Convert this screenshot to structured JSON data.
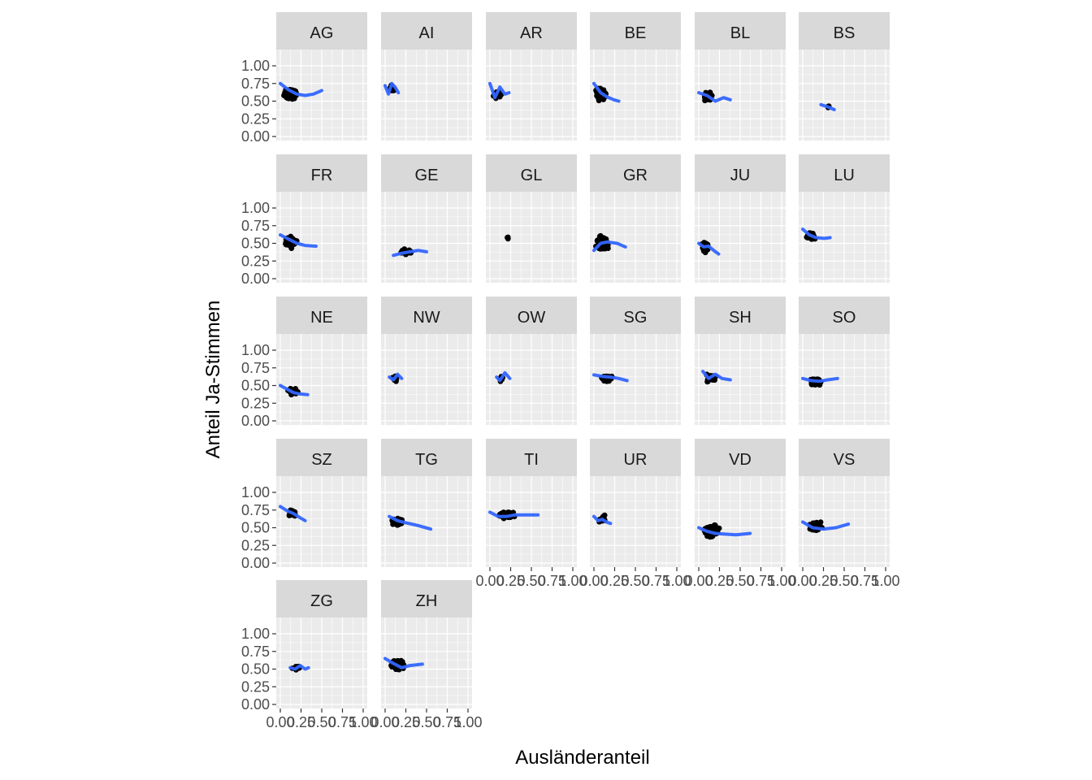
{
  "chart_data": {
    "type": "scatter",
    "title": "",
    "xlabel": "Ausländeranteil",
    "ylabel": "Anteil Ja-Stimmen",
    "xlim": [
      0,
      1
    ],
    "ylim": [
      0,
      1
    ],
    "x_ticks": [
      "0.00",
      "0.25",
      "0.50",
      "0.75",
      "1.00"
    ],
    "y_ticks": [
      "0.00",
      "0.25",
      "0.50",
      "0.75",
      "1.00"
    ],
    "x_tick_values": [
      0,
      0.25,
      0.5,
      0.75,
      1
    ],
    "y_tick_values": [
      0,
      0.25,
      0.5,
      0.75,
      1
    ],
    "grid": true,
    "smooth_line_color": "#3366FF",
    "point_color": "#000000",
    "panel_background": "#EBEBEB",
    "strip_background": "#D9D9D9",
    "facets": [
      {
        "label": "AG",
        "x_center": 0.12,
        "x_spread": 0.1,
        "x_max": 0.55,
        "y_center": 0.6,
        "y_spread": 0.1,
        "n": 200,
        "smooth": [
          [
            0.0,
            0.75
          ],
          [
            0.1,
            0.66
          ],
          [
            0.2,
            0.6
          ],
          [
            0.3,
            0.58
          ],
          [
            0.4,
            0.6
          ],
          [
            0.5,
            0.65
          ]
        ]
      },
      {
        "label": "AI",
        "x_center": 0.08,
        "x_spread": 0.05,
        "x_max": 0.17,
        "y_center": 0.68,
        "y_spread": 0.07,
        "n": 20,
        "smooth": [
          [
            0.0,
            0.72
          ],
          [
            0.04,
            0.6
          ],
          [
            0.08,
            0.75
          ],
          [
            0.12,
            0.7
          ],
          [
            0.16,
            0.62
          ]
        ]
      },
      {
        "label": "AR",
        "x_center": 0.1,
        "x_spread": 0.07,
        "x_max": 0.25,
        "y_center": 0.6,
        "y_spread": 0.1,
        "n": 20,
        "smooth": [
          [
            0.0,
            0.75
          ],
          [
            0.06,
            0.55
          ],
          [
            0.12,
            0.7
          ],
          [
            0.18,
            0.6
          ],
          [
            0.23,
            0.62
          ]
        ]
      },
      {
        "label": "BE",
        "x_center": 0.08,
        "x_spread": 0.07,
        "x_max": 0.3,
        "y_center": 0.6,
        "y_spread": 0.12,
        "n": 250,
        "smooth": [
          [
            0.0,
            0.75
          ],
          [
            0.08,
            0.62
          ],
          [
            0.16,
            0.56
          ],
          [
            0.24,
            0.52
          ],
          [
            0.3,
            0.5
          ]
        ]
      },
      {
        "label": "BL",
        "x_center": 0.12,
        "x_spread": 0.08,
        "x_max": 0.38,
        "y_center": 0.57,
        "y_spread": 0.08,
        "n": 80,
        "smooth": [
          [
            0.0,
            0.62
          ],
          [
            0.1,
            0.58
          ],
          [
            0.2,
            0.5
          ],
          [
            0.3,
            0.55
          ],
          [
            0.38,
            0.52
          ]
        ]
      },
      {
        "label": "BS",
        "x_center": 0.3,
        "x_spread": 0.05,
        "x_max": 0.38,
        "y_center": 0.42,
        "y_spread": 0.03,
        "n": 3,
        "smooth": [
          [
            0.22,
            0.45
          ],
          [
            0.3,
            0.42
          ],
          [
            0.38,
            0.38
          ]
        ]
      },
      {
        "label": "FR",
        "x_center": 0.12,
        "x_spread": 0.09,
        "x_max": 0.45,
        "y_center": 0.52,
        "y_spread": 0.1,
        "n": 160,
        "smooth": [
          [
            0.0,
            0.62
          ],
          [
            0.1,
            0.56
          ],
          [
            0.2,
            0.5
          ],
          [
            0.3,
            0.47
          ],
          [
            0.43,
            0.46
          ]
        ]
      },
      {
        "label": "GE",
        "x_center": 0.25,
        "x_spread": 0.1,
        "x_max": 0.55,
        "y_center": 0.38,
        "y_spread": 0.05,
        "n": 45,
        "smooth": [
          [
            0.1,
            0.33
          ],
          [
            0.2,
            0.36
          ],
          [
            0.3,
            0.38
          ],
          [
            0.4,
            0.4
          ],
          [
            0.5,
            0.38
          ]
        ]
      },
      {
        "label": "GL",
        "x_center": 0.22,
        "x_spread": 0.03,
        "x_max": 0.26,
        "y_center": 0.58,
        "y_spread": 0.04,
        "n": 3,
        "smooth": []
      },
      {
        "label": "GR",
        "x_center": 0.1,
        "x_spread": 0.1,
        "x_max": 0.4,
        "y_center": 0.5,
        "y_spread": 0.14,
        "n": 200,
        "smooth": [
          [
            0.0,
            0.4
          ],
          [
            0.08,
            0.5
          ],
          [
            0.16,
            0.52
          ],
          [
            0.28,
            0.5
          ],
          [
            0.38,
            0.45
          ]
        ]
      },
      {
        "label": "JU",
        "x_center": 0.08,
        "x_spread": 0.06,
        "x_max": 0.25,
        "y_center": 0.45,
        "y_spread": 0.1,
        "n": 55,
        "smooth": [
          [
            0.0,
            0.5
          ],
          [
            0.06,
            0.45
          ],
          [
            0.12,
            0.46
          ],
          [
            0.18,
            0.4
          ],
          [
            0.24,
            0.35
          ]
        ]
      },
      {
        "label": "LU",
        "x_center": 0.1,
        "x_spread": 0.07,
        "x_max": 0.35,
        "y_center": 0.6,
        "y_spread": 0.07,
        "n": 80,
        "smooth": [
          [
            0.0,
            0.7
          ],
          [
            0.08,
            0.62
          ],
          [
            0.16,
            0.58
          ],
          [
            0.26,
            0.57
          ],
          [
            0.33,
            0.58
          ]
        ]
      },
      {
        "label": "NE",
        "x_center": 0.15,
        "x_spread": 0.08,
        "x_max": 0.35,
        "y_center": 0.42,
        "y_spread": 0.07,
        "n": 40,
        "smooth": [
          [
            0.0,
            0.5
          ],
          [
            0.08,
            0.45
          ],
          [
            0.16,
            0.4
          ],
          [
            0.24,
            0.38
          ],
          [
            0.33,
            0.37
          ]
        ]
      },
      {
        "label": "NW",
        "x_center": 0.12,
        "x_spread": 0.05,
        "x_max": 0.22,
        "y_center": 0.6,
        "y_spread": 0.06,
        "n": 11,
        "smooth": [
          [
            0.05,
            0.62
          ],
          [
            0.1,
            0.58
          ],
          [
            0.15,
            0.66
          ],
          [
            0.2,
            0.6
          ]
        ]
      },
      {
        "label": "OW",
        "x_center": 0.14,
        "x_spread": 0.05,
        "x_max": 0.25,
        "y_center": 0.6,
        "y_spread": 0.06,
        "n": 7,
        "smooth": [
          [
            0.08,
            0.62
          ],
          [
            0.12,
            0.57
          ],
          [
            0.18,
            0.68
          ],
          [
            0.24,
            0.6
          ]
        ]
      },
      {
        "label": "SG",
        "x_center": 0.15,
        "x_spread": 0.1,
        "x_max": 0.45,
        "y_center": 0.6,
        "y_spread": 0.06,
        "n": 80,
        "smooth": [
          [
            0.0,
            0.65
          ],
          [
            0.1,
            0.63
          ],
          [
            0.2,
            0.62
          ],
          [
            0.3,
            0.6
          ],
          [
            0.4,
            0.57
          ]
        ]
      },
      {
        "label": "SH",
        "x_center": 0.15,
        "x_spread": 0.1,
        "x_max": 0.4,
        "y_center": 0.6,
        "y_spread": 0.08,
        "n": 30,
        "smooth": [
          [
            0.05,
            0.7
          ],
          [
            0.12,
            0.6
          ],
          [
            0.2,
            0.66
          ],
          [
            0.28,
            0.6
          ],
          [
            0.38,
            0.58
          ]
        ]
      },
      {
        "label": "SO",
        "x_center": 0.15,
        "x_spread": 0.1,
        "x_max": 0.45,
        "y_center": 0.55,
        "y_spread": 0.08,
        "n": 110,
        "smooth": [
          [
            0.0,
            0.6
          ],
          [
            0.1,
            0.57
          ],
          [
            0.2,
            0.56
          ],
          [
            0.3,
            0.58
          ],
          [
            0.42,
            0.6
          ]
        ]
      },
      {
        "label": "SZ",
        "x_center": 0.15,
        "x_spread": 0.08,
        "x_max": 0.35,
        "y_center": 0.7,
        "y_spread": 0.07,
        "n": 30,
        "smooth": [
          [
            0.0,
            0.8
          ],
          [
            0.08,
            0.74
          ],
          [
            0.16,
            0.7
          ],
          [
            0.24,
            0.64
          ],
          [
            0.3,
            0.6
          ]
        ]
      },
      {
        "label": "TG",
        "x_center": 0.15,
        "x_spread": 0.1,
        "x_max": 0.55,
        "y_center": 0.58,
        "y_spread": 0.07,
        "n": 80,
        "smooth": [
          [
            0.05,
            0.66
          ],
          [
            0.15,
            0.6
          ],
          [
            0.25,
            0.57
          ],
          [
            0.4,
            0.53
          ],
          [
            0.55,
            0.48
          ]
        ]
      },
      {
        "label": "TI",
        "x_center": 0.2,
        "x_spread": 0.12,
        "x_max": 0.6,
        "y_center": 0.68,
        "y_spread": 0.06,
        "n": 200,
        "smooth": [
          [
            0.0,
            0.72
          ],
          [
            0.1,
            0.66
          ],
          [
            0.2,
            0.66
          ],
          [
            0.3,
            0.68
          ],
          [
            0.45,
            0.68
          ],
          [
            0.58,
            0.68
          ]
        ]
      },
      {
        "label": "UR",
        "x_center": 0.1,
        "x_spread": 0.08,
        "x_max": 0.2,
        "y_center": 0.62,
        "y_spread": 0.09,
        "n": 20,
        "smooth": [
          [
            0.0,
            0.66
          ],
          [
            0.05,
            0.6
          ],
          [
            0.1,
            0.62
          ],
          [
            0.15,
            0.58
          ],
          [
            0.2,
            0.56
          ]
        ]
      },
      {
        "label": "VD",
        "x_center": 0.15,
        "x_spread": 0.12,
        "x_max": 0.65,
        "y_center": 0.45,
        "y_spread": 0.1,
        "n": 330,
        "smooth": [
          [
            0.0,
            0.5
          ],
          [
            0.1,
            0.45
          ],
          [
            0.2,
            0.42
          ],
          [
            0.3,
            0.41
          ],
          [
            0.45,
            0.4
          ],
          [
            0.62,
            0.42
          ]
        ]
      },
      {
        "label": "VS",
        "x_center": 0.15,
        "x_spread": 0.1,
        "x_max": 0.6,
        "y_center": 0.52,
        "y_spread": 0.08,
        "n": 140,
        "smooth": [
          [
            0.0,
            0.58
          ],
          [
            0.12,
            0.5
          ],
          [
            0.25,
            0.48
          ],
          [
            0.4,
            0.5
          ],
          [
            0.55,
            0.55
          ]
        ]
      },
      {
        "label": "ZG",
        "x_center": 0.2,
        "x_spread": 0.08,
        "x_max": 0.35,
        "y_center": 0.52,
        "y_spread": 0.05,
        "n": 11,
        "smooth": [
          [
            0.12,
            0.52
          ],
          [
            0.18,
            0.5
          ],
          [
            0.24,
            0.55
          ],
          [
            0.3,
            0.5
          ],
          [
            0.34,
            0.52
          ]
        ]
      },
      {
        "label": "ZH",
        "x_center": 0.15,
        "x_spread": 0.1,
        "x_max": 0.5,
        "y_center": 0.56,
        "y_spread": 0.09,
        "n": 160,
        "smooth": [
          [
            0.0,
            0.65
          ],
          [
            0.1,
            0.58
          ],
          [
            0.2,
            0.52
          ],
          [
            0.3,
            0.55
          ],
          [
            0.45,
            0.57
          ]
        ]
      }
    ]
  }
}
